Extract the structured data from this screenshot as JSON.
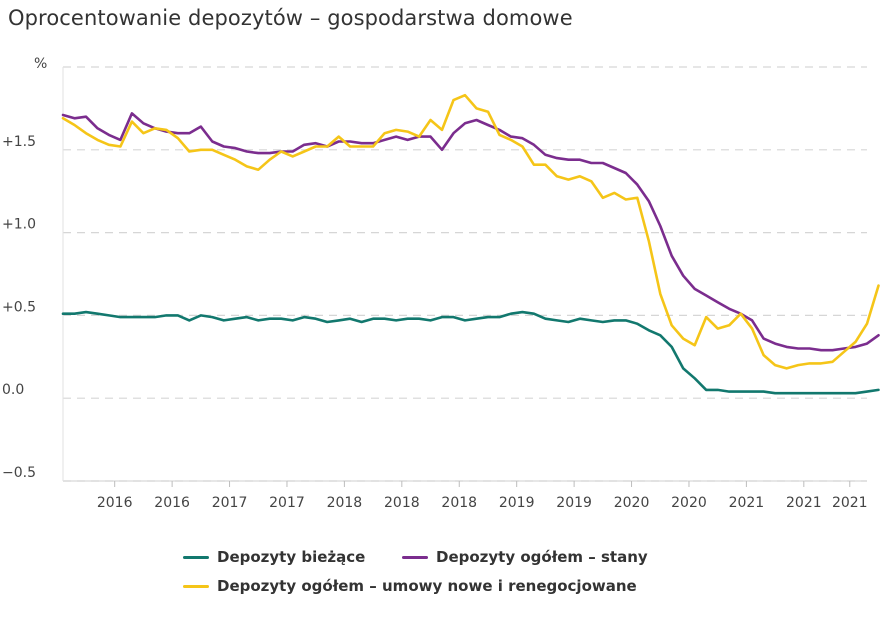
{
  "chart_data": {
    "type": "line",
    "title": "Oprocentowanie depozytów – gospodarstwa domowe",
    "ylabel": "%",
    "ylim": [
      -0.5,
      2.0
    ],
    "yticks": [
      {
        "value": 1.5,
        "label": "+1.5"
      },
      {
        "value": 1.0,
        "label": "+1.0"
      },
      {
        "value": 0.5,
        "label": "+0.5"
      },
      {
        "value": 0.0,
        "label": "0.0"
      },
      {
        "value": -0.5,
        "label": "−0.5"
      }
    ],
    "xlim": [
      0,
      70
    ],
    "xticks": [
      {
        "pos": 4.5,
        "label": "2016"
      },
      {
        "pos": 9.5,
        "label": "2016"
      },
      {
        "pos": 14.5,
        "label": "2017"
      },
      {
        "pos": 19.5,
        "label": "2017"
      },
      {
        "pos": 24.5,
        "label": "2018"
      },
      {
        "pos": 29.5,
        "label": "2018"
      },
      {
        "pos": 34.5,
        "label": "2018"
      },
      {
        "pos": 39.5,
        "label": "2019"
      },
      {
        "pos": 44.5,
        "label": "2019"
      },
      {
        "pos": 49.5,
        "label": "2020"
      },
      {
        "pos": 54.5,
        "label": "2020"
      },
      {
        "pos": 59.5,
        "label": "2021"
      },
      {
        "pos": 64.5,
        "label": "2021"
      },
      {
        "pos": 68.5,
        "label": "2021"
      }
    ],
    "series": [
      {
        "name": "Depozyty bieżące",
        "color": "#12786e",
        "values": [
          0.51,
          0.51,
          0.52,
          0.51,
          0.5,
          0.49,
          0.49,
          0.49,
          0.49,
          0.5,
          0.5,
          0.47,
          0.5,
          0.49,
          0.47,
          0.48,
          0.49,
          0.47,
          0.48,
          0.48,
          0.47,
          0.49,
          0.48,
          0.46,
          0.47,
          0.48,
          0.46,
          0.48,
          0.48,
          0.47,
          0.48,
          0.48,
          0.47,
          0.49,
          0.49,
          0.47,
          0.48,
          0.49,
          0.49,
          0.51,
          0.52,
          0.51,
          0.48,
          0.47,
          0.46,
          0.48,
          0.47,
          0.46,
          0.47,
          0.47,
          0.45,
          0.41,
          0.38,
          0.31,
          0.18,
          0.12,
          0.05,
          0.05,
          0.04,
          0.04,
          0.04,
          0.04,
          0.03,
          0.03,
          0.03,
          0.03,
          0.03,
          0.03,
          0.03,
          0.03,
          0.04,
          0.05
        ]
      },
      {
        "name": "Depozyty ogółem – stany",
        "color": "#7b2d8e",
        "values": [
          1.71,
          1.69,
          1.7,
          1.63,
          1.59,
          1.56,
          1.72,
          1.66,
          1.63,
          1.61,
          1.6,
          1.6,
          1.64,
          1.55,
          1.52,
          1.51,
          1.49,
          1.48,
          1.48,
          1.49,
          1.49,
          1.53,
          1.54,
          1.52,
          1.55,
          1.55,
          1.54,
          1.54,
          1.56,
          1.58,
          1.56,
          1.58,
          1.58,
          1.5,
          1.6,
          1.66,
          1.68,
          1.65,
          1.62,
          1.58,
          1.57,
          1.53,
          1.47,
          1.45,
          1.44,
          1.44,
          1.42,
          1.42,
          1.39,
          1.36,
          1.29,
          1.19,
          1.04,
          0.86,
          0.74,
          0.66,
          0.62,
          0.58,
          0.54,
          0.51,
          0.47,
          0.36,
          0.33,
          0.31,
          0.3,
          0.3,
          0.29,
          0.29,
          0.3,
          0.31,
          0.33,
          0.38
        ]
      },
      {
        "name": "Depozyty ogółem – umowy nowe i renegocjowane",
        "color": "#f5c518",
        "values": [
          1.69,
          1.65,
          1.6,
          1.56,
          1.53,
          1.52,
          1.67,
          1.6,
          1.63,
          1.62,
          1.57,
          1.49,
          1.5,
          1.5,
          1.47,
          1.44,
          1.4,
          1.38,
          1.44,
          1.49,
          1.46,
          1.49,
          1.52,
          1.52,
          1.58,
          1.52,
          1.52,
          1.52,
          1.6,
          1.62,
          1.61,
          1.58,
          1.68,
          1.62,
          1.8,
          1.83,
          1.75,
          1.73,
          1.59,
          1.56,
          1.52,
          1.41,
          1.41,
          1.34,
          1.32,
          1.34,
          1.31,
          1.21,
          1.24,
          1.2,
          1.21,
          0.95,
          0.63,
          0.44,
          0.36,
          0.32,
          0.49,
          0.42,
          0.44,
          0.51,
          0.42,
          0.26,
          0.2,
          0.18,
          0.2,
          0.21,
          0.21,
          0.22,
          0.28,
          0.34,
          0.45,
          0.68
        ]
      }
    ]
  }
}
